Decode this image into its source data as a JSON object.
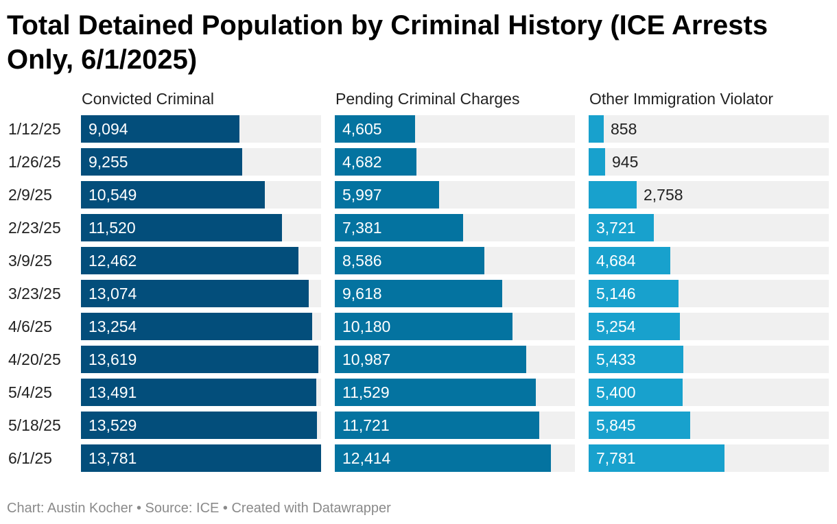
{
  "chart_data": {
    "type": "bar",
    "title": "Total Detained Population by Criminal History (ICE Arrests Only, 6/1/2025)",
    "categories": [
      "1/12/25",
      "1/26/25",
      "2/9/25",
      "2/23/25",
      "3/9/25",
      "3/23/25",
      "4/6/25",
      "4/20/25",
      "5/4/25",
      "5/18/25",
      "6/1/25"
    ],
    "series": [
      {
        "name": "Convicted Criminal",
        "color": "#034e7b",
        "values": [
          9094,
          9255,
          10549,
          11520,
          12462,
          13074,
          13254,
          13619,
          13491,
          13529,
          13781
        ],
        "labels": [
          "9,094",
          "9,255",
          "10,549",
          "11,520",
          "12,462",
          "13,074",
          "13,254",
          "13,619",
          "13,491",
          "13,529",
          "13,781"
        ]
      },
      {
        "name": "Pending Criminal Charges",
        "color": "#0473a0",
        "values": [
          4605,
          4682,
          5997,
          7381,
          8586,
          9618,
          10180,
          10987,
          11529,
          11721,
          12414
        ],
        "labels": [
          "4,605",
          "4,682",
          "5,997",
          "7,381",
          "8,586",
          "9,618",
          "10,180",
          "10,987",
          "11,529",
          "11,721",
          "12,414"
        ]
      },
      {
        "name": "Other Immigration Violator",
        "color": "#18a1cd",
        "values": [
          858,
          945,
          2758,
          3721,
          4684,
          5146,
          5254,
          5433,
          5400,
          5845,
          7781
        ],
        "labels": [
          "858",
          "945",
          "2,758",
          "3,721",
          "4,684",
          "5,146",
          "5,254",
          "5,433",
          "5,400",
          "5,845",
          "7,781"
        ]
      }
    ],
    "xlim": [
      0,
      13781
    ],
    "grid": false,
    "legend": "none",
    "footer": "Chart: Austin Kocher • Source: ICE • Created with Datawrapper"
  }
}
